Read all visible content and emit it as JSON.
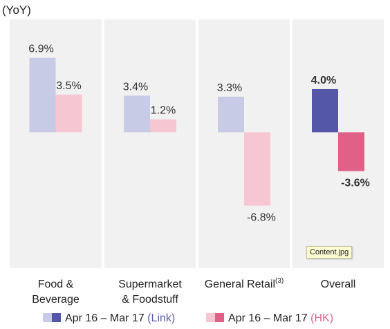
{
  "chart_data": {
    "type": "bar",
    "unit_label": "(YoY)",
    "categories": [
      "Food &\nBeverage",
      "Supermarket\n& Foodstuff",
      "General Retail",
      "Overall"
    ],
    "category_superscripts": [
      "",
      "",
      "(3)",
      ""
    ],
    "series": [
      {
        "name": "Apr 16 – Mar 17 (Link)",
        "legend_prefix": "Apr 16 – Mar 17 ",
        "legend_suffix": "(Link)",
        "values": [
          6.9,
          3.4,
          3.3,
          4.0
        ],
        "data_labels": [
          "6.9%",
          "3.4%",
          "3.3%",
          "4.0%"
        ],
        "color_light": "#c8cbe6",
        "color_emphasis": "#5457a6",
        "suffix_color": "#5a5db0"
      },
      {
        "name": "Apr 16 – Mar 17 (HK)",
        "legend_prefix": "Apr 16 – Mar 17 ",
        "legend_suffix": "(HK)",
        "values": [
          3.5,
          1.2,
          -6.8,
          -3.6
        ],
        "data_labels": [
          "3.5%",
          "1.2%",
          "-6.8%",
          "-3.6%"
        ],
        "color_light": "#f6c6d3",
        "color_emphasis": "#e06087",
        "suffix_color": "#e2608a"
      }
    ],
    "emphasized_category": "Overall",
    "ylim": [
      -12.6,
      9.7
    ],
    "grid": false,
    "panel_background": "#f1f1f1",
    "legend_position": "bottom"
  },
  "overlay": {
    "tooltip_text": "Content.jpg"
  }
}
